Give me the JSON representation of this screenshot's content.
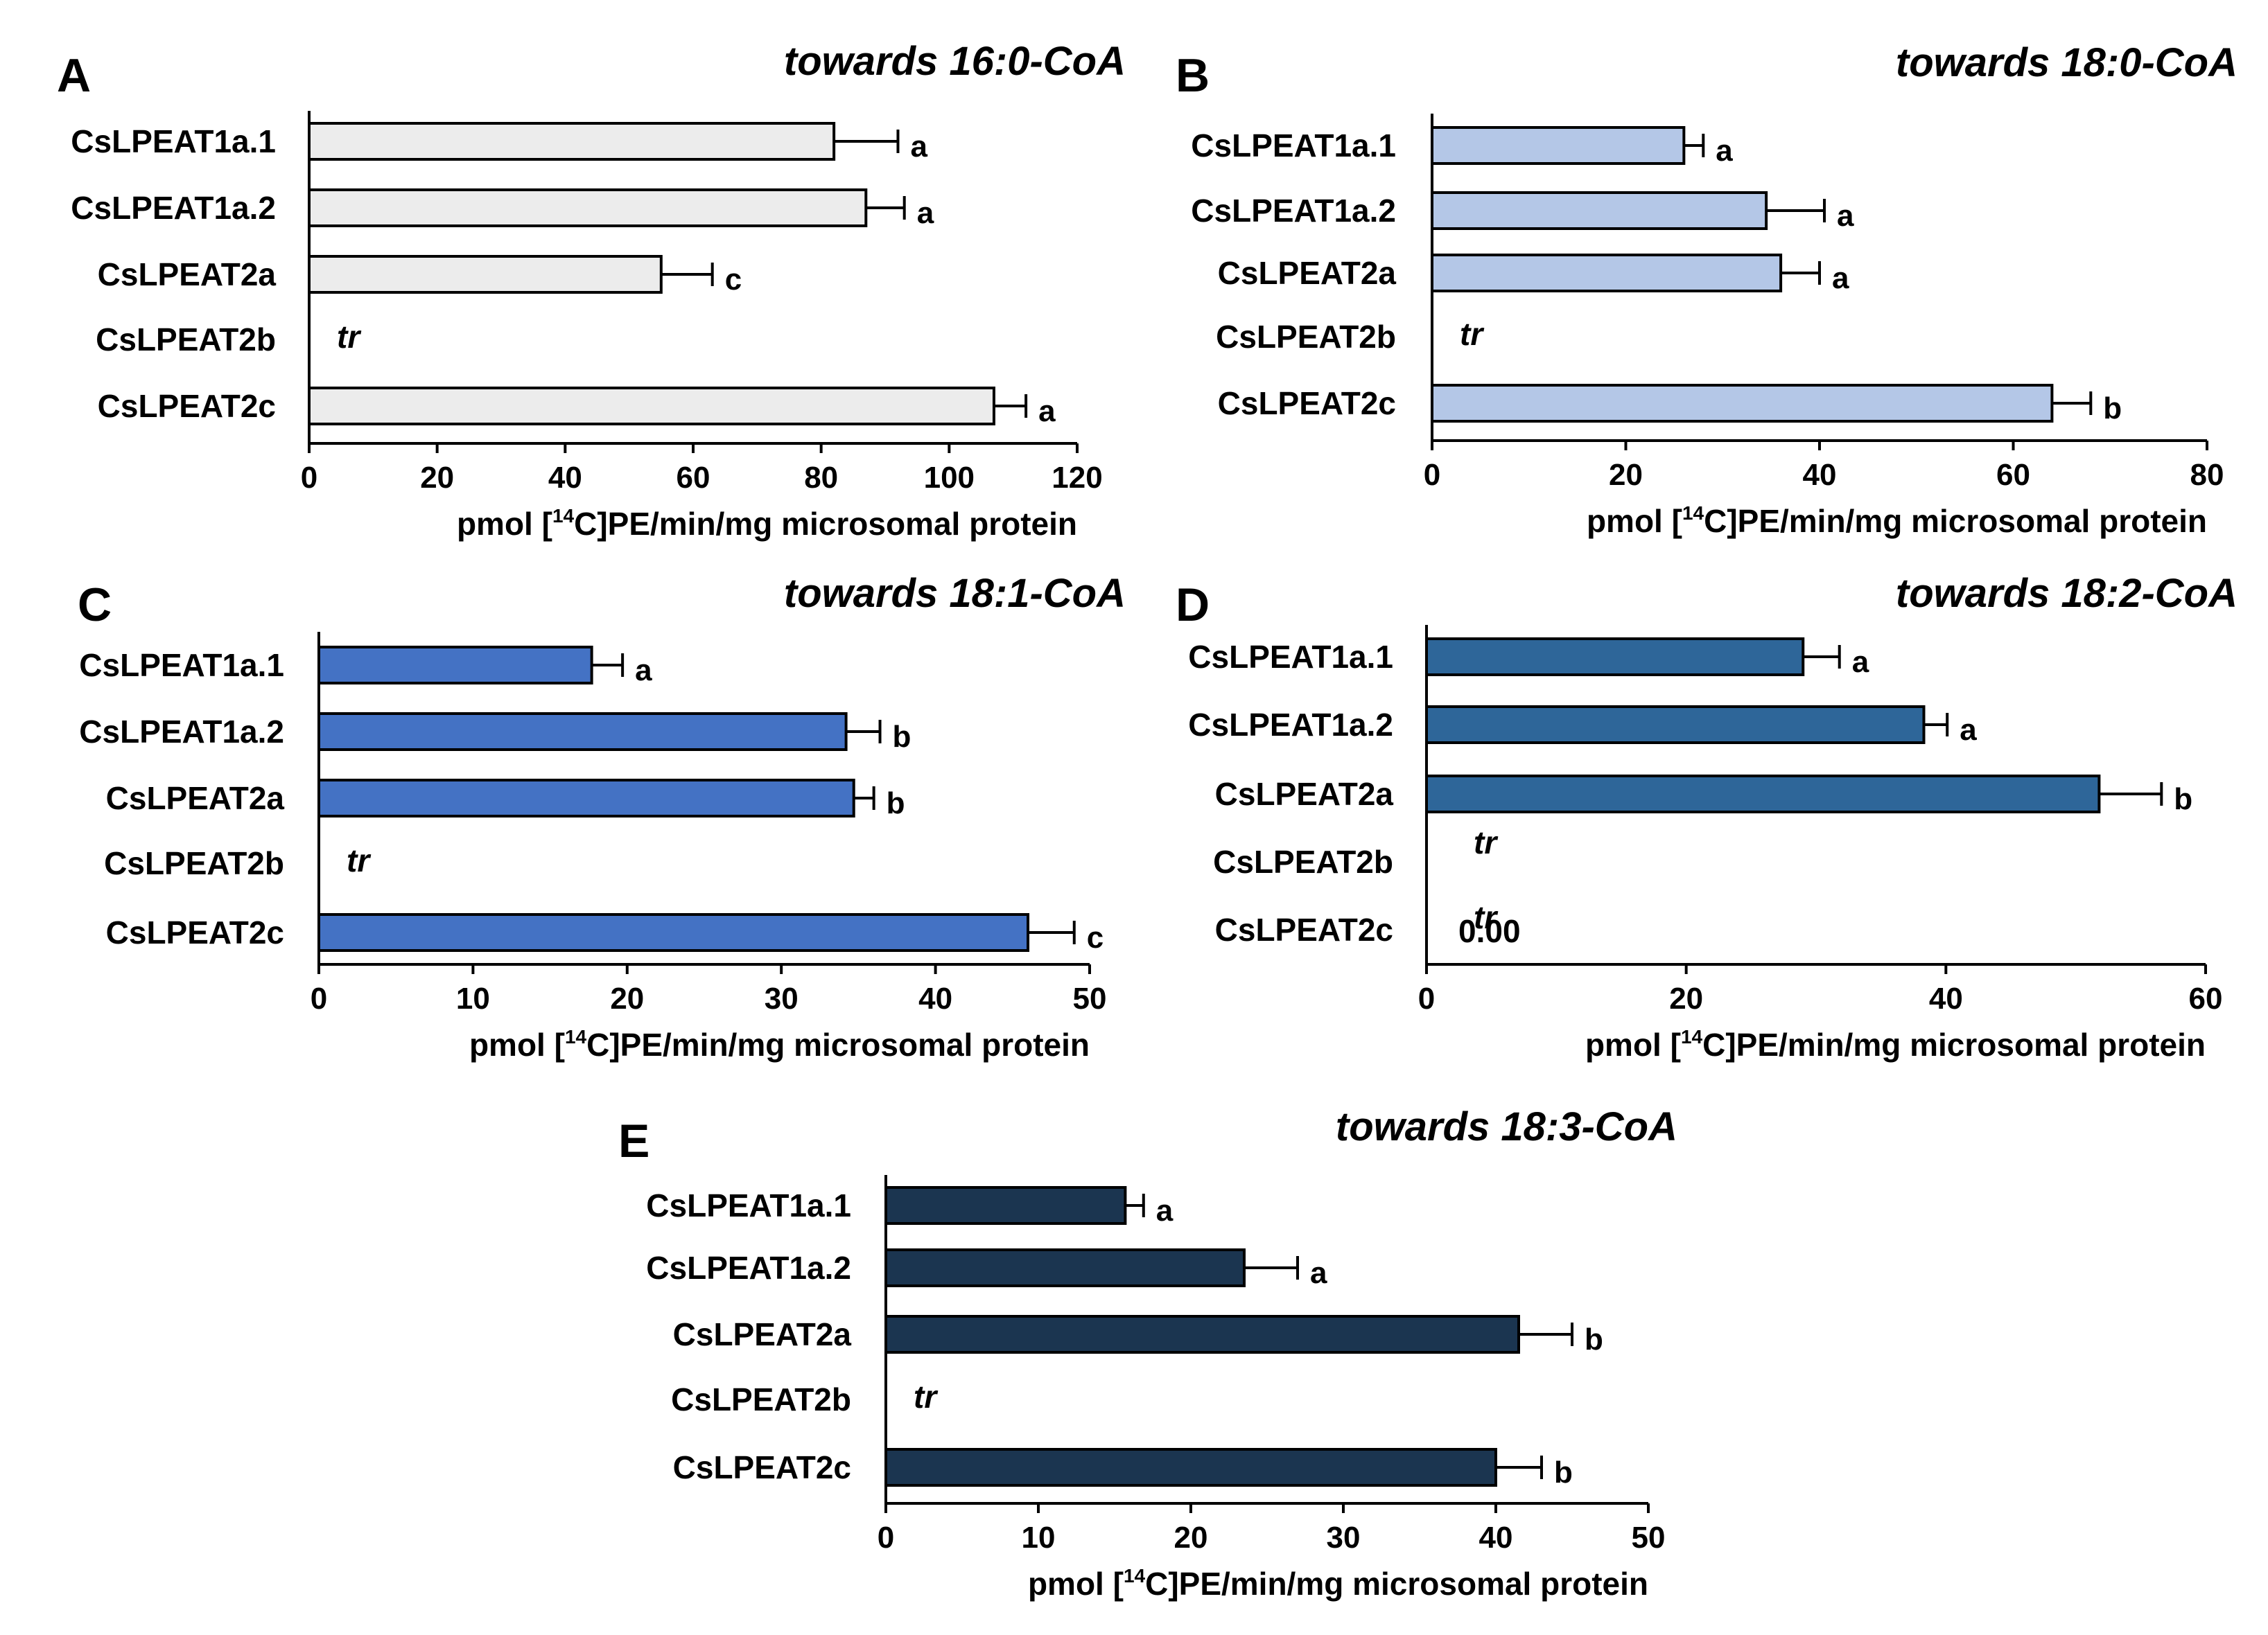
{
  "chart_data": [
    {
      "type": "bar",
      "panel": "A",
      "title": "towards 16:0-CoA",
      "categories": [
        "CsLPEAT1a.1",
        "CsLPEAT1a.2",
        "CsLPEAT2a",
        "CsLPEAT2b",
        "CsLPEAT2c"
      ],
      "values": [
        82,
        87,
        55,
        null,
        107
      ],
      "errors": [
        10,
        6,
        8,
        null,
        5
      ],
      "significance": [
        "a",
        "a",
        "c",
        "",
        "a"
      ],
      "trace_label": "tr",
      "xlim": [
        0,
        120
      ],
      "xticks": [
        "0",
        "20",
        "40",
        "60",
        "80",
        "100",
        "120"
      ],
      "xlabel": {
        "pre": "pmol [",
        "sup": "14",
        "post": "C]PE/min/mg  microsomal  protein"
      },
      "bar_color": "#ececec"
    },
    {
      "type": "bar",
      "panel": "B",
      "title": "towards 18:0-CoA",
      "categories": [
        "CsLPEAT1a.1",
        "CsLPEAT1a.2",
        "CsLPEAT2a",
        "CsLPEAT2b",
        "CsLPEAT2c"
      ],
      "values": [
        26,
        34.5,
        36,
        null,
        64
      ],
      "errors": [
        2,
        6,
        4,
        null,
        4
      ],
      "significance": [
        "a",
        "a",
        "a",
        "",
        "b"
      ],
      "trace_label": "tr",
      "xlim": [
        0,
        80
      ],
      "xticks": [
        "0",
        "20",
        "40",
        "60",
        "80"
      ],
      "xlabel": {
        "pre": "pmol [",
        "sup": "14",
        "post": "C]PE/min/mg  microsomal  protein"
      },
      "bar_color": "#b4c7e7"
    },
    {
      "type": "bar",
      "panel": "C",
      "title": "towards 18:1-CoA",
      "categories": [
        "CsLPEAT1a.1",
        "CsLPEAT1a.2",
        "CsLPEAT2a",
        "CsLPEAT2b",
        "CsLPEAT2c"
      ],
      "values": [
        17.7,
        34.2,
        34.7,
        null,
        46
      ],
      "errors": [
        2,
        2.2,
        1.3,
        null,
        3
      ],
      "significance": [
        "a",
        "b",
        "b",
        "",
        "c"
      ],
      "trace_label": "tr",
      "xlim": [
        0,
        50
      ],
      "xticks": [
        "0",
        "10",
        "20",
        "30",
        "40",
        "50"
      ],
      "xlabel": {
        "pre": "pmol [",
        "sup": "14",
        "post": "C]PE/min/mg  microsomal  protein"
      },
      "bar_color": "#4472c4"
    },
    {
      "type": "bar",
      "panel": "D",
      "title": "towards 18:2-CoA",
      "categories": [
        "CsLPEAT1a.1",
        "CsLPEAT1a.2",
        "CsLPEAT2a",
        "CsLPEAT2b",
        "CsLPEAT2c"
      ],
      "values": [
        29,
        38.3,
        51.8,
        null,
        null
      ],
      "errors": [
        2.8,
        1.8,
        4.8,
        null,
        null
      ],
      "significance": [
        "a",
        "a",
        "b",
        "",
        ""
      ],
      "trace_label": "tr",
      "zero_value_label": "0.00",
      "xlim": [
        0,
        60
      ],
      "xticks": [
        "0",
        "20",
        "40",
        "60"
      ],
      "xlabel": {
        "pre": "pmol [",
        "sup": "14",
        "post": "C]PE/min/mg  microsomal  protein"
      },
      "bar_color": "#2e6699"
    },
    {
      "type": "bar",
      "panel": "E",
      "title": "towards 18:3-CoA",
      "categories": [
        "CsLPEAT1a.1",
        "CsLPEAT1a.2",
        "CsLPEAT2a",
        "CsLPEAT2b",
        "CsLPEAT2c"
      ],
      "values": [
        15.7,
        23.5,
        41.5,
        null,
        40
      ],
      "errors": [
        1.2,
        3.5,
        3.5,
        null,
        3
      ],
      "significance": [
        "a",
        "a",
        "b",
        "",
        "b"
      ],
      "trace_label": "tr",
      "xlim": [
        0,
        50
      ],
      "xticks": [
        "0",
        "10",
        "20",
        "30",
        "40",
        "50"
      ],
      "xlabel": {
        "pre": "pmol [",
        "sup": "14",
        "post": "C]PE/min/mg  microsomal  protein"
      },
      "bar_color": "#1b3550"
    }
  ]
}
